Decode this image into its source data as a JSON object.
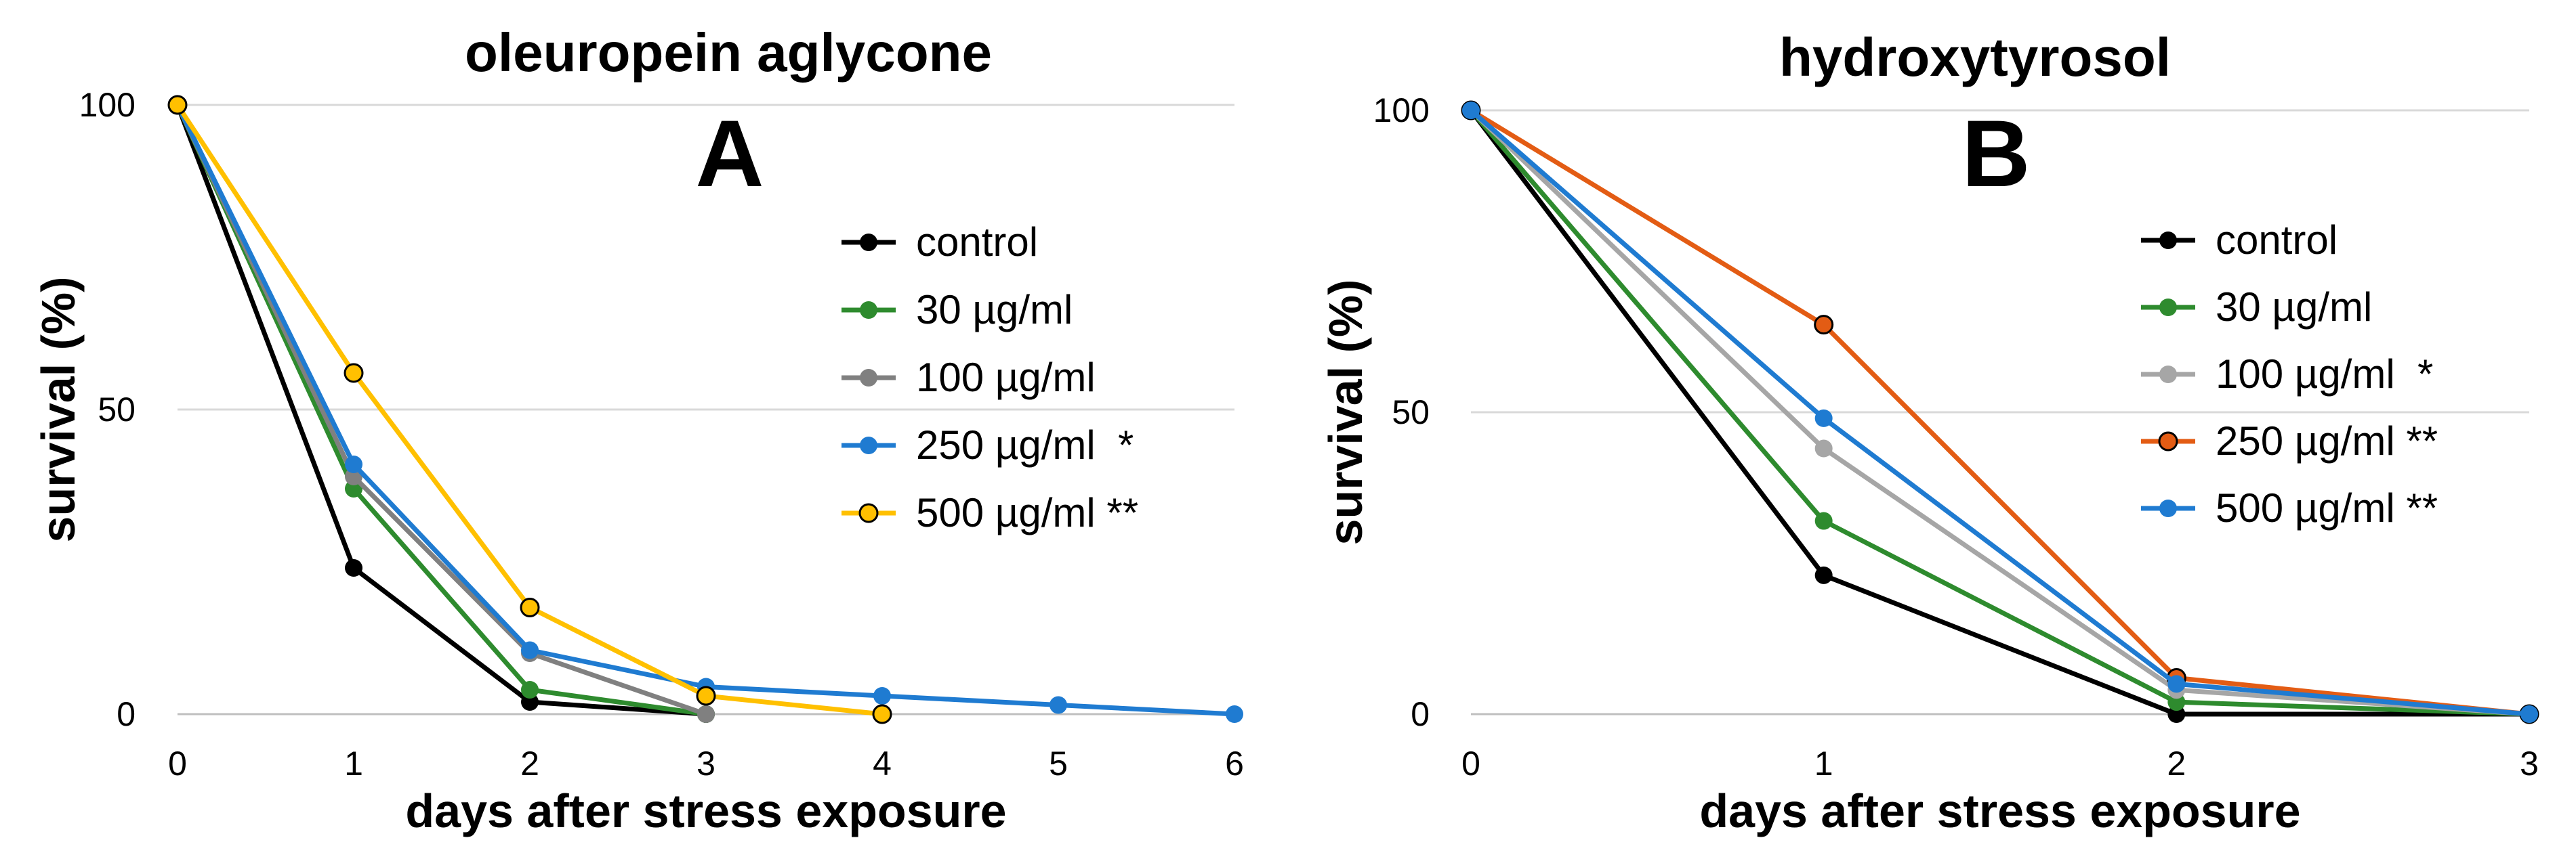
{
  "chart_data": [
    {
      "type": "line",
      "title": "oleuropein aglycone",
      "panel": "A",
      "xlabel": "days after stress exposure",
      "ylabel": "survival (%)",
      "xlim": [
        0,
        6
      ],
      "ylim": [
        0,
        100
      ],
      "xticks": [
        "0",
        "1",
        "2",
        "3",
        "4",
        "5",
        "6"
      ],
      "yticks": [
        "0",
        "50",
        "100"
      ],
      "grid": "horizontal",
      "legend": "right",
      "series": [
        {
          "name": "control",
          "color": "#000000",
          "marker_fill": "#000000",
          "x": [
            0,
            1,
            2,
            3
          ],
          "values": [
            100,
            24,
            2,
            0
          ]
        },
        {
          "name": "30 µg/ml",
          "color": "#2e8b2e",
          "marker_fill": "#2e8b2e",
          "x": [
            0,
            1,
            2,
            3
          ],
          "values": [
            100,
            37,
            4,
            0
          ]
        },
        {
          "name": "100 µg/ml",
          "color": "#808080",
          "marker_fill": "#808080",
          "x": [
            0,
            1,
            2,
            3
          ],
          "values": [
            100,
            39,
            10,
            0
          ]
        },
        {
          "name": "250 µg/ml  *",
          "color": "#1f7bd1",
          "marker_fill": "#1f7bd1",
          "x": [
            0,
            1,
            2,
            3,
            4,
            5,
            6
          ],
          "values": [
            100,
            41,
            10.5,
            4.5,
            3,
            1.5,
            0
          ]
        },
        {
          "name": "500 µg/ml **",
          "color": "#ffc000",
          "marker_fill": "#ffc000",
          "marker_stroke": "#000000",
          "x": [
            0,
            1,
            2,
            3,
            4
          ],
          "values": [
            100,
            56,
            17.5,
            3,
            0
          ]
        }
      ]
    },
    {
      "type": "line",
      "title": "hydroxytyrosol",
      "panel": "B",
      "xlabel": "days after stress exposure",
      "ylabel": "survival (%)",
      "xlim": [
        0,
        3
      ],
      "ylim": [
        0,
        100
      ],
      "xticks": [
        "0",
        "1",
        "2",
        "3"
      ],
      "yticks": [
        "0",
        "50",
        "100"
      ],
      "grid": "horizontal",
      "legend": "right",
      "series": [
        {
          "name": "control",
          "color": "#000000",
          "marker_fill": "#000000",
          "x": [
            0,
            1,
            2,
            3
          ],
          "values": [
            100,
            23,
            0,
            0
          ]
        },
        {
          "name": "30 µg/ml",
          "color": "#2e8b2e",
          "marker_fill": "#2e8b2e",
          "x": [
            0,
            1,
            2,
            3
          ],
          "values": [
            100,
            32,
            2,
            0
          ]
        },
        {
          "name": "100 µg/ml  *",
          "color": "#a6a6a6",
          "marker_fill": "#a6a6a6",
          "x": [
            0,
            1,
            2,
            3
          ],
          "values": [
            100,
            44,
            4,
            0
          ]
        },
        {
          "name": "250 µg/ml **",
          "color": "#e35c14",
          "marker_fill": "#e35c14",
          "marker_stroke": "#000000",
          "x": [
            0,
            1,
            2,
            3
          ],
          "values": [
            100,
            64.5,
            6,
            0
          ]
        },
        {
          "name": "500 µg/ml **",
          "color": "#1f7bd1",
          "marker_fill": "#1f7bd1",
          "x": [
            0,
            1,
            2,
            3
          ],
          "values": [
            100,
            49,
            5,
            0
          ]
        }
      ]
    }
  ]
}
